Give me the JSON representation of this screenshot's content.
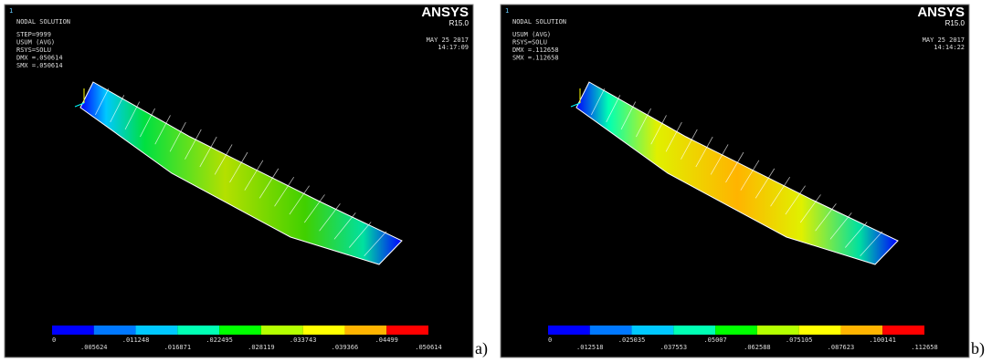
{
  "panels": [
    {
      "label": "a)",
      "corner_id": "1",
      "title": "NODAL SOLUTION",
      "info": [
        "STEP=9999",
        "USUM    (AVG)",
        "RSYS=SOLU",
        "DMX =.050614",
        "SMX =.050614"
      ],
      "logo": "ANSYS",
      "version": "R15.0",
      "date": "MAY 25 2017",
      "time": "14:17:09",
      "legend_top": [
        "0",
        ".011248",
        ".022495",
        ".033743",
        ".04499"
      ],
      "legend_bottom": [
        ".005624",
        ".016871",
        ".028119",
        ".039366",
        ".050614"
      ]
    },
    {
      "label": "b)",
      "corner_id": "1",
      "title": "NODAL SOLUTION",
      "info": [
        "USUM    (AVG)",
        "RSYS=SOLU",
        "DMX =.112658",
        "SMX =.112658"
      ],
      "logo": "ANSYS",
      "version": "R15.0",
      "date": "MAY 25 2017",
      "time": "14:14:22",
      "legend_top": [
        "0",
        ".025035",
        ".05007",
        ".075105",
        ".100141"
      ],
      "legend_bottom": [
        ".012518",
        ".037553",
        ".062588",
        ".087623",
        ".112658"
      ]
    }
  ]
}
